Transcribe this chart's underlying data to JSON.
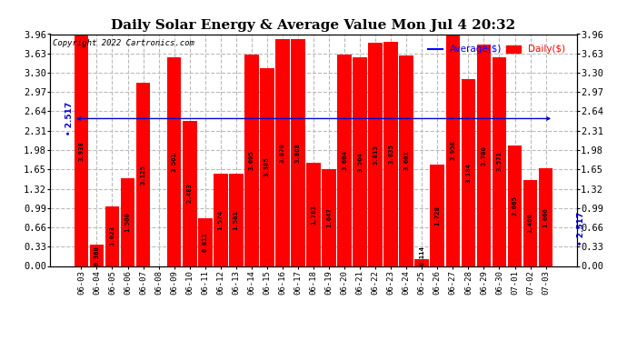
{
  "title": "Daily Solar Energy & Average Value Mon Jul 4 20:32",
  "copyright": "Copyright 2022 Cartronics.com",
  "categories": [
    "06-03",
    "06-04",
    "06-05",
    "06-06",
    "06-07",
    "06-08",
    "06-09",
    "06-10",
    "06-11",
    "06-12",
    "06-13",
    "06-14",
    "06-15",
    "06-16",
    "06-17",
    "06-18",
    "06-19",
    "06-20",
    "06-21",
    "06-22",
    "06-23",
    "06-24",
    "06-25",
    "06-26",
    "06-27",
    "06-28",
    "06-29",
    "06-30",
    "07-01",
    "07-02",
    "07-03"
  ],
  "values": [
    3.938,
    0.36,
    1.023,
    1.5,
    3.125,
    0.0,
    3.561,
    2.483,
    0.811,
    1.574,
    1.581,
    3.605,
    3.385,
    3.87,
    3.868,
    1.763,
    1.647,
    3.604,
    3.564,
    3.813,
    3.835,
    3.601,
    0.114,
    1.728,
    3.958,
    3.184,
    3.786,
    3.571,
    2.065,
    1.46,
    1.666
  ],
  "average": 2.517,
  "bar_color": "#ff0000",
  "average_line_color": "#0000cc",
  "ylim": [
    0.0,
    3.96
  ],
  "yticks": [
    0.0,
    0.33,
    0.66,
    0.99,
    1.32,
    1.65,
    1.98,
    2.31,
    2.64,
    2.97,
    3.3,
    3.63,
    3.96
  ],
  "grid_color": "#bbbbbb",
  "bg_color": "#ffffff",
  "plot_bg_color": "#ffffff",
  "title_fontsize": 11,
  "bar_label_fontsize": 5.2,
  "tick_fontsize": 7.5,
  "legend_avg_color": "#0000ff",
  "legend_daily_color": "#ff0000",
  "copyright_fontsize": 6.5
}
